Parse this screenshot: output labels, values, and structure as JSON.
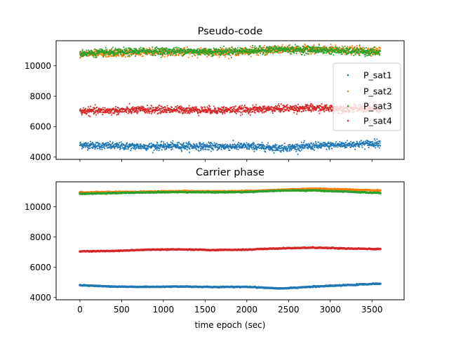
{
  "chart_data": [
    {
      "type": "scatter",
      "title": "Pseudo-code",
      "xlabel": "",
      "ylabel": "",
      "xlim": [
        -285,
        3885
      ],
      "ylim": [
        3850,
        11650
      ],
      "xticks": [
        0,
        500,
        1000,
        1500,
        2000,
        2500,
        3000,
        3500
      ],
      "yticks": [
        4000,
        6000,
        8000,
        10000
      ],
      "ytick_labels": [
        "4000",
        "6000",
        "8000",
        "10000"
      ],
      "show_x_tick_labels": false,
      "grid": false,
      "legend": {
        "placement": "center-right",
        "entries": [
          "P_sat1",
          "P_sat2",
          "P_sat3",
          "P_sat4"
        ]
      },
      "epoch_range": [
        0,
        3600
      ],
      "noise_sd": 120,
      "series": [
        {
          "name": "P_sat1",
          "color": "#1f77b4",
          "x": [
            0,
            400,
            800,
            1200,
            1600,
            2000,
            2400,
            2800,
            3200,
            3600
          ],
          "y": [
            4810,
            4720,
            4700,
            4730,
            4690,
            4710,
            4600,
            4720,
            4820,
            4920
          ]
        },
        {
          "name": "P_sat2",
          "color": "#ff7f0e",
          "x": [
            0,
            400,
            800,
            1200,
            1600,
            2000,
            2400,
            2800,
            3200,
            3600
          ],
          "y": [
            10760,
            10820,
            10900,
            10920,
            10900,
            10950,
            11050,
            11100,
            11020,
            10980
          ]
        },
        {
          "name": "P_sat3",
          "color": "#2ca02c",
          "x": [
            0,
            400,
            800,
            1200,
            1600,
            2000,
            2400,
            2800,
            3200,
            3600
          ],
          "y": [
            10820,
            10880,
            10970,
            10960,
            10930,
            10980,
            11080,
            11060,
            10960,
            10880
          ]
        },
        {
          "name": "P_sat4",
          "color": "#d62728",
          "x": [
            0,
            400,
            800,
            1200,
            1600,
            2000,
            2400,
            2800,
            3200,
            3600
          ],
          "y": [
            7020,
            7050,
            7110,
            7120,
            7080,
            7110,
            7190,
            7220,
            7180,
            7150
          ]
        }
      ]
    },
    {
      "type": "line",
      "title": "Carrier phase",
      "xlabel": "time epoch (sec)",
      "ylabel": "",
      "xlim": [
        -285,
        3885
      ],
      "ylim": [
        3850,
        11650
      ],
      "xticks": [
        0,
        500,
        1000,
        1500,
        2000,
        2500,
        3000,
        3500
      ],
      "xtick_labels": [
        "0",
        "500",
        "1000",
        "1500",
        "2000",
        "2500",
        "3000",
        "3500"
      ],
      "yticks": [
        4000,
        6000,
        8000,
        10000
      ],
      "ytick_labels": [
        "4000",
        "6000",
        "8000",
        "10000"
      ],
      "grid": false,
      "series": [
        {
          "color": "#1f77b4",
          "x": [
            0,
            400,
            800,
            1200,
            1600,
            2000,
            2400,
            2800,
            3200,
            3600
          ],
          "y": [
            4810,
            4720,
            4700,
            4730,
            4690,
            4710,
            4600,
            4720,
            4820,
            4920
          ]
        },
        {
          "color": "#ff7f0e",
          "x": [
            0,
            400,
            800,
            1200,
            1600,
            2000,
            2400,
            2800,
            3200,
            3600
          ],
          "y": [
            10950,
            10980,
            11000,
            11040,
            11020,
            11040,
            11120,
            11200,
            11140,
            11080
          ]
        },
        {
          "color": "#2ca02c",
          "x": [
            0,
            400,
            800,
            1200,
            1600,
            2000,
            2400,
            2800,
            3200,
            3600
          ],
          "y": [
            10860,
            10900,
            10950,
            10980,
            10960,
            10980,
            11070,
            11080,
            11000,
            10910
          ]
        },
        {
          "color": "#d62728",
          "x": [
            0,
            400,
            800,
            1200,
            1600,
            2000,
            2400,
            2800,
            3200,
            3600
          ],
          "y": [
            7050,
            7080,
            7160,
            7180,
            7140,
            7170,
            7250,
            7300,
            7240,
            7200
          ]
        }
      ]
    }
  ]
}
